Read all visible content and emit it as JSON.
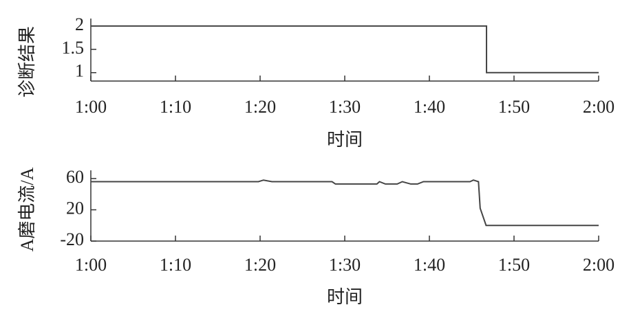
{
  "chart_data": [
    {
      "type": "line",
      "x_label": "时间",
      "y_label": "诊断结果",
      "color": "#444444",
      "x": [
        60,
        106.75,
        106.75,
        120
      ],
      "values": [
        2,
        2,
        1,
        1
      ],
      "xlim": [
        60,
        120
      ],
      "xticks": [
        {
          "value": 60,
          "label": "1:00"
        },
        {
          "value": 70,
          "label": "1:10"
        },
        {
          "value": 80,
          "label": "1:20"
        },
        {
          "value": 90,
          "label": "1:30"
        },
        {
          "value": 100,
          "label": "1:40"
        },
        {
          "value": 110,
          "label": "1:50"
        },
        {
          "value": 120,
          "label": "2:00"
        }
      ],
      "ylim": [
        0.82,
        2.16
      ],
      "yticks": [
        1,
        1.5,
        2
      ]
    },
    {
      "type": "line",
      "x_label": "时间",
      "y_label": "A磨电流/A",
      "color": "#444444",
      "x": [
        60,
        79.8,
        80.4,
        81.4,
        88.5,
        88.9,
        93.8,
        94.1,
        94.8,
        96.2,
        96.8,
        97.8,
        98.6,
        99.3,
        104.8,
        105.2,
        105.8,
        106.0,
        106.7,
        120
      ],
      "values": [
        56,
        56,
        58,
        56,
        56,
        53,
        53,
        56,
        53,
        53,
        56,
        53,
        53,
        56,
        56,
        58,
        56,
        22,
        0,
        0
      ],
      "xlim": [
        60,
        120
      ],
      "xticks": [
        {
          "value": 60,
          "label": "1:00"
        },
        {
          "value": 70,
          "label": "1:10"
        },
        {
          "value": 80,
          "label": "1:20"
        },
        {
          "value": 90,
          "label": "1:30"
        },
        {
          "value": 100,
          "label": "1:40"
        },
        {
          "value": 110,
          "label": "1:50"
        },
        {
          "value": 120,
          "label": "2:00"
        }
      ],
      "ylim": [
        -20,
        70.5
      ],
      "yticks": [
        -20,
        20,
        60
      ]
    }
  ]
}
